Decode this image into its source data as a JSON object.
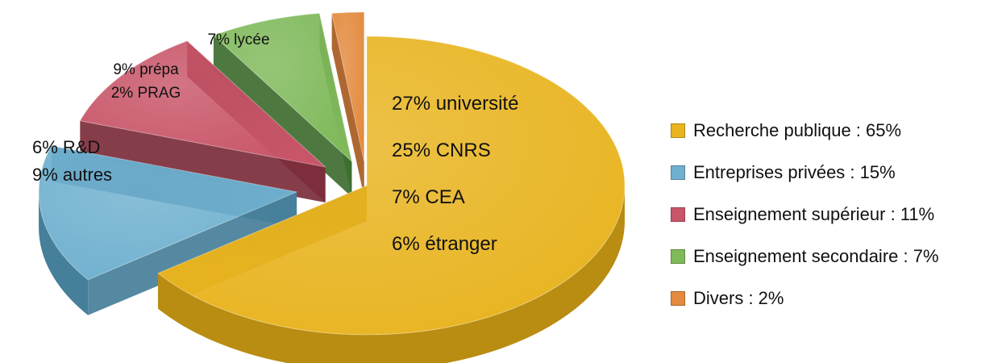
{
  "chart_data": {
    "type": "pie",
    "slices": [
      {
        "name": "Recherche publique : 65%",
        "value": 65,
        "color": "#e8b420",
        "side": "#b98c12",
        "annotations": [
          "27% université",
          "25% CNRS",
          "7% CEA",
          "6% étranger"
        ]
      },
      {
        "name": "Entreprises privées : 15%",
        "value": 15,
        "color": "#6fb0cf",
        "side": "#467f9a",
        "annotations": [
          "6% R&D",
          "9% autres"
        ]
      },
      {
        "name": "Enseignement supérieur : 11%",
        "value": 11,
        "color": "#c85568",
        "side": "#7c2c3b",
        "annotations": [
          "9% prépa",
          "2% PRAG"
        ]
      },
      {
        "name": "Enseignement secondaire : 7%",
        "value": 7,
        "color": "#7fb95a",
        "side": "#3e6e30",
        "annotations": [
          "7% lycée"
        ]
      },
      {
        "name": "Divers : 2%",
        "value": 2,
        "color": "#e38a3e",
        "side": "#a85a20",
        "annotations": []
      }
    ],
    "legend_position": "right",
    "exploded": true,
    "style": "3d"
  }
}
